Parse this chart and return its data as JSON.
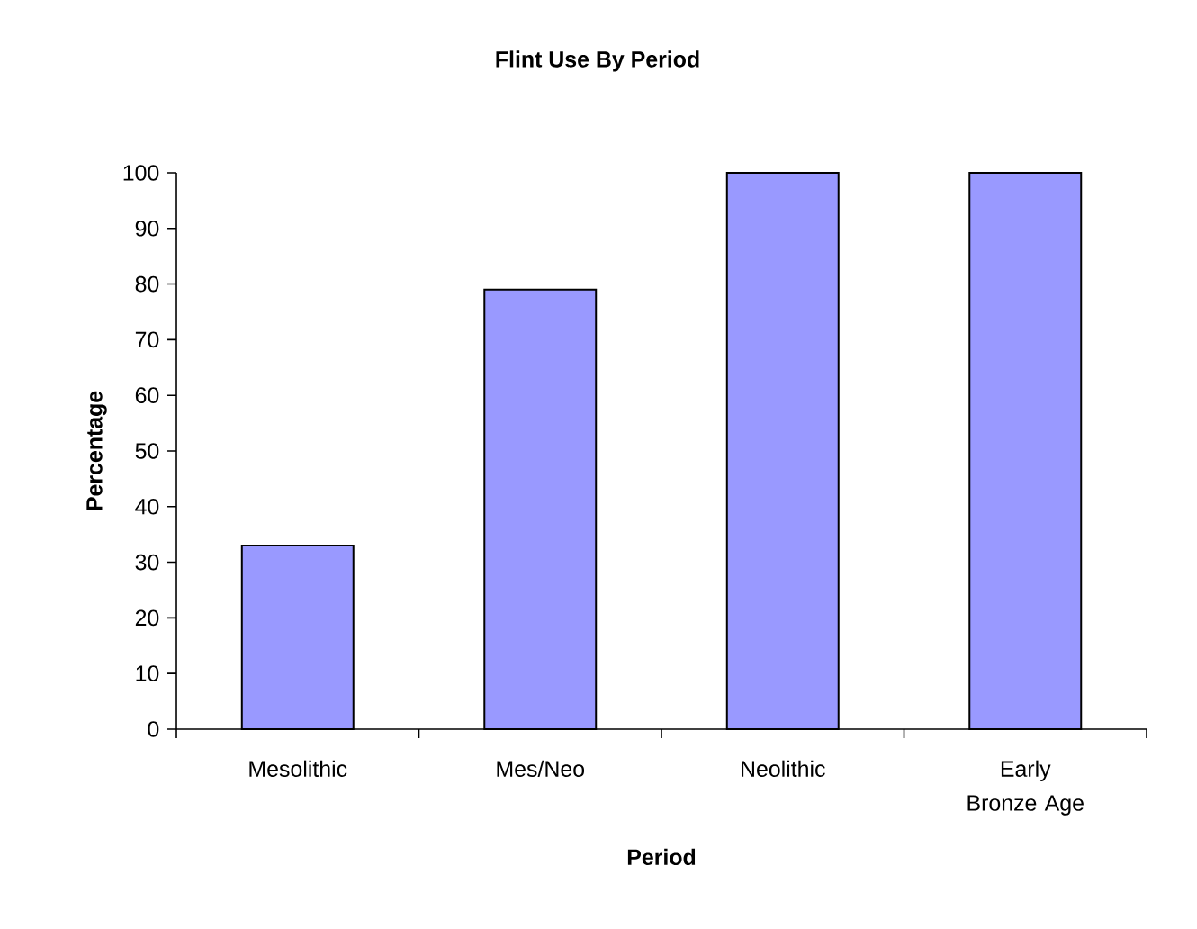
{
  "chart_data": {
    "type": "bar",
    "title": "Flint Use By Period",
    "xlabel": "Period",
    "ylabel": "Percentage",
    "categories": [
      "Mesolithic",
      "Mes/Neo",
      "Neolithic",
      "Early Bronze Age"
    ],
    "values": [
      33,
      79,
      100,
      100
    ],
    "color": "#9999ff",
    "ylim": [
      0,
      100
    ],
    "yticks": [
      0,
      10,
      20,
      30,
      40,
      50,
      60,
      70,
      80,
      90,
      100
    ]
  }
}
